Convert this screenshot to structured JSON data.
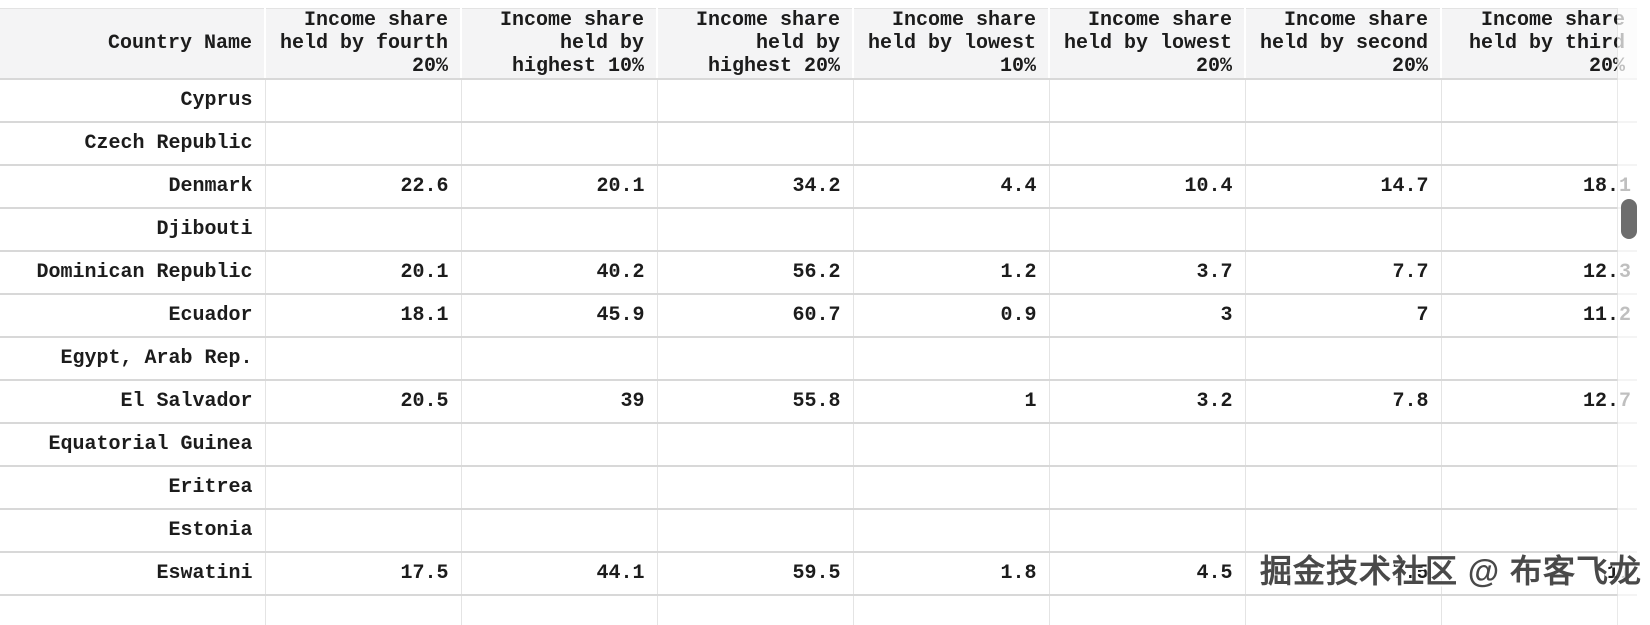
{
  "colors": {
    "header_bg": "#f4f4f5",
    "text": "#1c1c1c",
    "row_border": "#d8d8d8",
    "col_border": "#e4e4e4",
    "scroll_thumb": "#6d6d6d"
  },
  "header": {
    "columns": [
      {
        "id": "country",
        "label": "Country Name"
      },
      {
        "id": "fourth_20",
        "label": "Income share\nheld by fourth\n20%"
      },
      {
        "id": "highest_10",
        "label": "Income share\nheld by\nhighest 10%"
      },
      {
        "id": "highest_20",
        "label": "Income share\nheld by\nhighest 20%"
      },
      {
        "id": "lowest_10",
        "label": "Income share\nheld by lowest\n10%"
      },
      {
        "id": "lowest_20",
        "label": "Income share\nheld by lowest\n20%"
      },
      {
        "id": "second_20",
        "label": "Income share\nheld by second\n20%"
      },
      {
        "id": "third_20",
        "label": "Income share\nheld by third\n20%"
      }
    ]
  },
  "rows": [
    {
      "country": "Cyprus",
      "values": [
        "",
        "",
        "",
        "",
        "",
        "",
        ""
      ]
    },
    {
      "country": "Czech Republic",
      "values": [
        "",
        "",
        "",
        "",
        "",
        "",
        ""
      ]
    },
    {
      "country": "Denmark",
      "values": [
        "22.6",
        "20.1",
        "34.2",
        "4.4",
        "10.4",
        "14.7",
        "18.1"
      ]
    },
    {
      "country": "Djibouti",
      "values": [
        "",
        "",
        "",
        "",
        "",
        "",
        ""
      ]
    },
    {
      "country": "Dominican Republic",
      "values": [
        "20.1",
        "40.2",
        "56.2",
        "1.2",
        "3.7",
        "7.7",
        "12.3"
      ]
    },
    {
      "country": "Ecuador",
      "values": [
        "18.1",
        "45.9",
        "60.7",
        "0.9",
        "3",
        "7",
        "11.2"
      ]
    },
    {
      "country": "Egypt, Arab Rep.",
      "values": [
        "",
        "",
        "",
        "",
        "",
        "",
        ""
      ]
    },
    {
      "country": "El Salvador",
      "values": [
        "20.5",
        "39",
        "55.8",
        "1",
        "3.2",
        "7.8",
        "12.7"
      ]
    },
    {
      "country": "Equatorial Guinea",
      "values": [
        "",
        "",
        "",
        "",
        "",
        "",
        ""
      ]
    },
    {
      "country": "Eritrea",
      "values": [
        "",
        "",
        "",
        "",
        "",
        "",
        ""
      ]
    },
    {
      "country": "Estonia",
      "values": [
        "",
        "",
        "",
        "",
        "",
        "",
        ""
      ]
    },
    {
      "country": "Eswatini",
      "values": [
        "17.5",
        "44.1",
        "59.5",
        "1.8",
        "4.5",
        "7.5",
        "11"
      ]
    },
    {
      "country": "",
      "values": [
        "",
        "",
        "",
        "",
        "",
        "",
        ""
      ]
    }
  ],
  "watermark": {
    "text": "掘金技术社区 @ 布客飞龙"
  }
}
